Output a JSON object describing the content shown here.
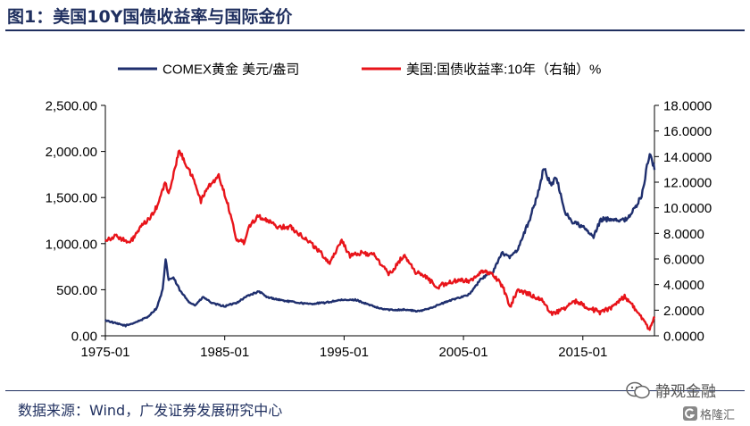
{
  "header": {
    "title": "图1：美国10Y国债收益率与国际金价"
  },
  "footer": {
    "source": "数据来源：Wind，广发证券发展研究中心"
  },
  "watermark": {
    "line1": "静观金融",
    "line2": "格隆汇"
  },
  "chart_data": {
    "type": "line",
    "title": "",
    "xlabel": "",
    "legend_position": "top",
    "grid": false,
    "x_tick_labels": [
      "1975-01",
      "1985-01",
      "1995-01",
      "2005-01",
      "2015-01"
    ],
    "x_range": [
      1975.0,
      2021.0
    ],
    "y_left": {
      "range": [
        0,
        2500
      ],
      "tick_labels": [
        "0.00",
        "500.00",
        "1,000.00",
        "1,500.00",
        "2,000.00",
        "2,500.00"
      ]
    },
    "y_right": {
      "range": [
        0,
        18
      ],
      "tick_labels": [
        "0.0000",
        "2.0000",
        "4.0000",
        "6.0000",
        "8.0000",
        "10.0000",
        "12.0000",
        "14.0000",
        "16.0000",
        "18.0000"
      ]
    },
    "series": [
      {
        "name": "COMEX黄金 美元/盎司",
        "axis": "left",
        "color": "#1f2f6e",
        "x": [
          1975.0,
          1976.0,
          1976.7,
          1977.5,
          1978.5,
          1979.3,
          1979.8,
          1980.05,
          1980.3,
          1980.7,
          1981.3,
          1982.0,
          1982.5,
          1983.2,
          1984.0,
          1985.0,
          1986.0,
          1987.0,
          1987.9,
          1988.5,
          1990.0,
          1992.0,
          1993.5,
          1994.5,
          1996.0,
          1997.0,
          1998.0,
          1999.0,
          2000.0,
          2001.3,
          2002.5,
          2003.5,
          2004.5,
          2005.5,
          2006.5,
          2007.5,
          2008.2,
          2008.8,
          2009.5,
          2010.5,
          2011.2,
          2011.7,
          2012.3,
          2012.8,
          2013.5,
          2014.0,
          2015.0,
          2015.9,
          2016.5,
          2017.5,
          2018.5,
          2019.5,
          2020.0,
          2020.6,
          2021.0
        ],
        "y": [
          170,
          130,
          110,
          145,
          200,
          300,
          500,
          820,
          610,
          630,
          480,
          370,
          330,
          420,
          350,
          320,
          360,
          440,
          480,
          420,
          380,
          345,
          360,
          385,
          390,
          340,
          295,
          280,
          285,
          265,
          315,
          365,
          410,
          450,
          620,
          700,
          900,
          850,
          930,
          1250,
          1520,
          1820,
          1650,
          1700,
          1350,
          1250,
          1180,
          1070,
          1260,
          1270,
          1250,
          1400,
          1560,
          2000,
          1800
        ]
      },
      {
        "name": "美国:国债收益率:10年（右轴）%",
        "axis": "right",
        "color": "#e8141a",
        "x": [
          1975.0,
          1976.0,
          1977.0,
          1978.0,
          1979.0,
          1979.5,
          1980.0,
          1980.3,
          1980.8,
          1981.2,
          1981.7,
          1982.5,
          1983.0,
          1983.5,
          1984.5,
          1985.2,
          1986.0,
          1986.6,
          1987.0,
          1987.8,
          1988.5,
          1989.5,
          1990.5,
          1991.5,
          1992.5,
          1993.8,
          1994.8,
          1995.5,
          1996.5,
          1997.5,
          1998.8,
          2000.0,
          2001.0,
          2002.0,
          2002.8,
          2003.5,
          2004.5,
          2005.5,
          2006.5,
          2007.5,
          2008.3,
          2008.9,
          2009.5,
          2010.5,
          2011.5,
          2012.5,
          2013.5,
          2014.5,
          2015.5,
          2016.5,
          2017.5,
          2018.5,
          2019.5,
          2020.3,
          2020.6,
          2021.0
        ],
        "y": [
          7.5,
          7.8,
          7.2,
          8.5,
          9.5,
          10.5,
          12.0,
          11.0,
          13.0,
          14.5,
          13.5,
          12.0,
          10.5,
          11.5,
          12.5,
          10.5,
          7.5,
          7.3,
          8.5,
          9.4,
          9.0,
          8.5,
          8.5,
          7.8,
          7.0,
          5.7,
          7.5,
          6.2,
          6.5,
          6.3,
          4.8,
          6.3,
          5.0,
          4.5,
          3.8,
          4.1,
          4.3,
          4.3,
          5.0,
          4.8,
          3.8,
          2.3,
          3.5,
          3.3,
          2.8,
          1.7,
          2.2,
          2.7,
          2.2,
          1.8,
          2.3,
          3.1,
          2.0,
          0.8,
          0.6,
          1.5
        ]
      }
    ]
  }
}
